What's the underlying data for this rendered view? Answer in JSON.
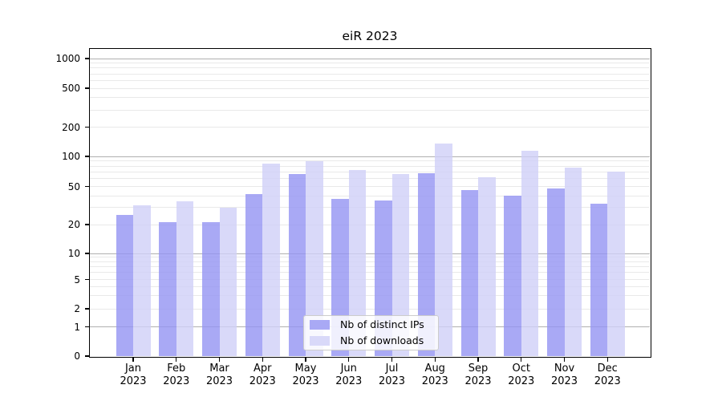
{
  "title": "eiR 2023",
  "chart_data": {
    "type": "bar",
    "title": "eiR 2023",
    "categories": [
      "Jan 2023",
      "Feb 2023",
      "Mar 2023",
      "Apr 2023",
      "May 2023",
      "Jun 2023",
      "Jul 2023",
      "Aug 2023",
      "Sep 2023",
      "Oct 2023",
      "Nov 2023",
      "Dec 2023"
    ],
    "series": [
      {
        "name": "Nb of distinct IPs",
        "color": "#9494f3",
        "values": [
          25,
          21,
          21,
          42,
          66,
          37,
          36,
          68,
          46,
          40,
          48,
          33
        ]
      },
      {
        "name": "Nb of downloads",
        "color": "#d0d0f8",
        "values": [
          32,
          35,
          30,
          84,
          90,
          73,
          66,
          135,
          62,
          114,
          77,
          70
        ]
      }
    ],
    "bar_alpha": 0.8,
    "yscale": "symlog",
    "yticks": [
      0,
      1,
      2,
      5,
      10,
      20,
      50,
      100,
      200,
      500,
      1000
    ],
    "ylim": [
      0,
      1200
    ],
    "xlabel": "",
    "ylabel": "",
    "grid": true,
    "legend_position": "lower center"
  },
  "legend": {
    "items": [
      {
        "label": "Nb of distinct IPs",
        "swatch_color": "#a9a9f5"
      },
      {
        "label": "Nb of downloads",
        "swatch_color": "#d9d9f9"
      }
    ]
  },
  "colors": {
    "major_grid": "#b0b0b0",
    "minor_grid": "#e9e9e9",
    "spine": "#000000"
  }
}
